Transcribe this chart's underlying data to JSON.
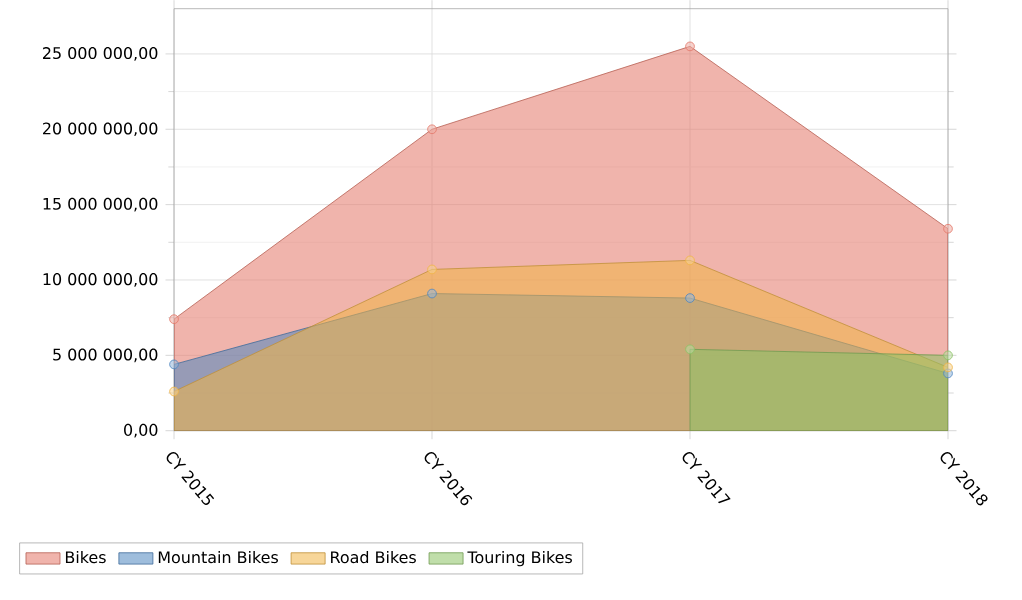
{
  "chart_data": {
    "type": "area",
    "categories": [
      "CY 2015",
      "CY 2016",
      "CY 2017",
      "CY 2018"
    ],
    "series": [
      {
        "name": "Bikes",
        "color": "#e37768",
        "values": [
          7400000,
          20000000,
          25500000,
          13400000
        ]
      },
      {
        "name": "Mountain Bikes",
        "color": "#4f86c0",
        "values": [
          4400000,
          9100000,
          8800000,
          3800000
        ]
      },
      {
        "name": "Road Bikes",
        "color": "#f0b445",
        "values": [
          2600000,
          10700000,
          11300000,
          4200000
        ]
      },
      {
        "name": "Touring Bikes",
        "color": "#8cc265",
        "values": [
          null,
          null,
          5400000,
          5000000
        ]
      }
    ],
    "ylim": [
      0,
      28000000
    ],
    "yticks": [
      {
        "value": 0,
        "label": "0,00"
      },
      {
        "value": 5000000,
        "label": "5 000 000,00"
      },
      {
        "value": 10000000,
        "label": "10 000 000,00"
      },
      {
        "value": 15000000,
        "label": "15 000 000,00"
      },
      {
        "value": 20000000,
        "label": "20 000 000,00"
      },
      {
        "value": 25000000,
        "label": "25 000 000,00"
      }
    ],
    "grid": true,
    "legend": "bottom",
    "marker": "circle"
  }
}
